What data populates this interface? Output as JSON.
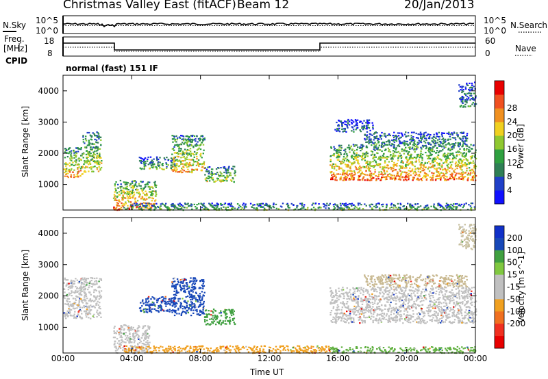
{
  "header": {
    "station": "Christmas Valley East (fitACF)",
    "beam": "Beam 12",
    "date": "20/Jan/2013"
  },
  "top_panels": {
    "nsky_label": "N.Sky",
    "nsearch_label": "N.Search",
    "noise_ticks_left": [
      "10^5",
      "10^0"
    ],
    "noise_ticks_right": [
      "10^5",
      "10^0"
    ],
    "freq_label_1": "Freq.",
    "freq_label_2": "[MHz]",
    "freq_ticks": [
      "18",
      "8"
    ],
    "nave_label": "Nave",
    "nave_ticks": [
      "60",
      "0"
    ],
    "cpid_label": "CPID",
    "cpid_value": "normal (fast) 151 IF"
  },
  "chart_data": [
    {
      "type": "heatmap",
      "name": "power-panel",
      "ylabel": "Slant Range [km]",
      "xlabel": "Time UT",
      "x_ticks": [
        "00:00",
        "04:00",
        "08:00",
        "12:00",
        "16:00",
        "20:00",
        "00:00"
      ],
      "x_range_hours": [
        0,
        24
      ],
      "y_ticks": [
        1000,
        2000,
        3000,
        4000
      ],
      "y_range_km": [
        180,
        4500
      ],
      "colorbar": {
        "label": "Power [dB]",
        "ticks": [
          "4",
          "8",
          "12",
          "16",
          "20",
          "24",
          "28"
        ],
        "colors": [
          "#1010ff",
          "#2040c8",
          "#2f7f55",
          "#2fa040",
          "#90c830",
          "#f0d020",
          "#f09020",
          "#f05020",
          "#e80000"
        ]
      },
      "regions": [
        {
          "t0": 0.0,
          "t1": 1.1,
          "r0": 1250,
          "r1": 2200,
          "level": 0.75
        },
        {
          "t0": 1.1,
          "t1": 2.2,
          "r0": 1400,
          "r1": 2700,
          "level": 0.6
        },
        {
          "t0": 2.9,
          "t1": 5.4,
          "r0": 200,
          "r1": 1150,
          "level": 0.85
        },
        {
          "t0": 4.4,
          "t1": 6.6,
          "r0": 1500,
          "r1": 1900,
          "level": 0.45
        },
        {
          "t0": 6.3,
          "t1": 8.2,
          "r0": 1400,
          "r1": 2600,
          "level": 0.7
        },
        {
          "t0": 8.2,
          "t1": 10.0,
          "r0": 1100,
          "r1": 1600,
          "level": 0.55
        },
        {
          "t0": 3.5,
          "t1": 24.0,
          "r0": 200,
          "r1": 420,
          "level": 0.45
        },
        {
          "t0": 15.5,
          "t1": 24.0,
          "r0": 1150,
          "r1": 2300,
          "level": 0.8
        },
        {
          "t0": 17.5,
          "t1": 23.5,
          "r0": 2300,
          "r1": 2700,
          "level": 0.3
        },
        {
          "t0": 15.8,
          "t1": 18.0,
          "r0": 2700,
          "r1": 3100,
          "level": 0.25
        },
        {
          "t0": 23.0,
          "t1": 24.0,
          "r0": 3500,
          "r1": 4300,
          "level": 0.3
        }
      ]
    },
    {
      "type": "heatmap",
      "name": "velocity-panel",
      "ylabel": "Slant Range [km]",
      "xlabel": "Time UT",
      "x_ticks": [
        "00:00",
        "04:00",
        "08:00",
        "12:00",
        "16:00",
        "20:00",
        "00:00"
      ],
      "x_range_hours": [
        0,
        24
      ],
      "y_ticks": [
        1000,
        2000,
        3000,
        4000
      ],
      "y_range_km": [
        180,
        4500
      ],
      "colorbar": {
        "label": "Velocity [m s^-1]",
        "ticks": [
          "200",
          "100",
          "50",
          "15",
          "-15",
          "-50",
          "-100",
          "-200"
        ],
        "colors": [
          "#1030c8",
          "#1848b8",
          "#40a040",
          "#80c840",
          "#c0c0c0",
          "#c0c0c0",
          "#f0a020",
          "#f07020",
          "#f03020",
          "#e80000"
        ]
      },
      "regions": [
        {
          "t0": 0.0,
          "t1": 2.2,
          "r0": 1300,
          "r1": 2600,
          "color": "#c0c0c0"
        },
        {
          "t0": 2.9,
          "t1": 5.0,
          "r0": 200,
          "r1": 1100,
          "color": "#c0c0c0"
        },
        {
          "t0": 4.4,
          "t1": 6.6,
          "r0": 1500,
          "r1": 2000,
          "color": "#1848b8"
        },
        {
          "t0": 6.3,
          "t1": 8.2,
          "r0": 1400,
          "r1": 2600,
          "color": "#1848b8"
        },
        {
          "t0": 8.2,
          "t1": 10.0,
          "r0": 1100,
          "r1": 1600,
          "color": "#40a040"
        },
        {
          "t0": 3.5,
          "t1": 15.5,
          "r0": 200,
          "r1": 430,
          "color": "#f0a020"
        },
        {
          "t0": 15.5,
          "t1": 24.0,
          "r0": 200,
          "r1": 400,
          "color": "#60b040"
        },
        {
          "t0": 15.5,
          "t1": 24.0,
          "r0": 1150,
          "r1": 2300,
          "color": "#c0c0c0"
        },
        {
          "t0": 17.5,
          "t1": 23.5,
          "r0": 2300,
          "r1": 2700,
          "color": "#c8b890"
        },
        {
          "t0": 23.0,
          "t1": 24.0,
          "r0": 3500,
          "r1": 4300,
          "color": "#c8c0a0"
        }
      ]
    }
  ]
}
